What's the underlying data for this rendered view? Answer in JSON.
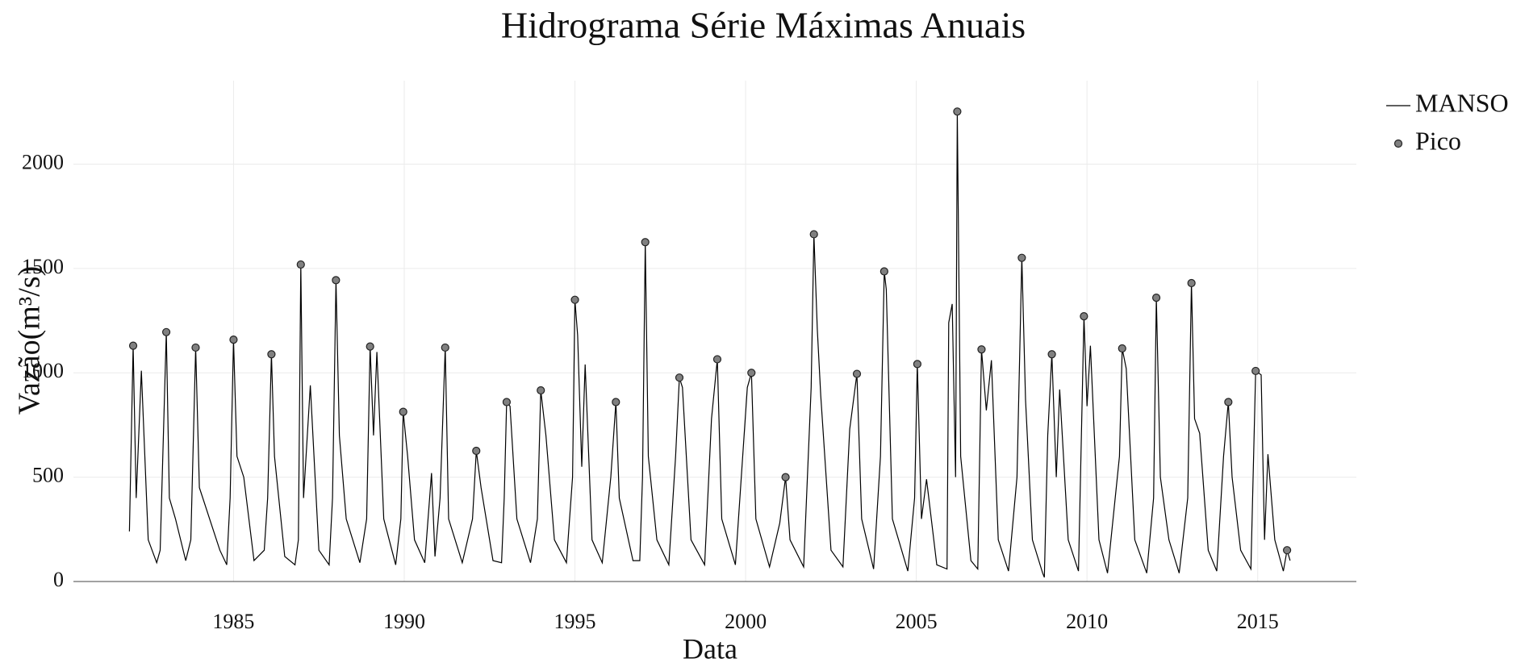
{
  "chart_data": {
    "type": "line",
    "title": "Hidrograma Série Máximas Anuais",
    "x_label": "Data",
    "y_label": "Vazão(m³/s)",
    "xlim": [
      1980.31,
      2017.89
    ],
    "xticks": [
      1985,
      1990,
      1995,
      2000,
      2005,
      2010,
      2015
    ],
    "ylim": [
      0,
      2400
    ],
    "yticks": [
      0,
      500,
      1000,
      1500,
      2000
    ],
    "grid": true,
    "legend": "top-right",
    "series": [
      {
        "name": "MANSO",
        "color": "#000000",
        "mode": "lines",
        "x": [
          1981.95,
          1982.06,
          1982.15,
          1982.3,
          1982.5,
          1982.75,
          1982.85,
          1983.03,
          1983.12,
          1983.3,
          1983.6,
          1983.75,
          1983.89,
          1984.0,
          1984.3,
          1984.6,
          1984.8,
          1984.9,
          1985.0,
          1985.1,
          1985.3,
          1985.6,
          1985.9,
          1986.0,
          1986.11,
          1986.2,
          1986.5,
          1986.8,
          1986.9,
          1986.97,
          1987.05,
          1987.25,
          1987.5,
          1987.8,
          1987.9,
          1988.0,
          1988.1,
          1988.3,
          1988.7,
          1988.9,
          1989.0,
          1989.1,
          1989.2,
          1989.4,
          1989.75,
          1989.9,
          1989.97,
          1990.1,
          1990.3,
          1990.6,
          1990.8,
          1990.9,
          1991.05,
          1991.2,
          1991.3,
          1991.7,
          1992.0,
          1992.11,
          1992.25,
          1992.6,
          1992.85,
          1992.93,
          1993.0,
          1993.1,
          1993.3,
          1993.7,
          1993.9,
          1994.0,
          1994.15,
          1994.4,
          1994.75,
          1994.93,
          1995.0,
          1995.08,
          1995.2,
          1995.3,
          1995.5,
          1995.8,
          1996.05,
          1996.2,
          1996.3,
          1996.7,
          1996.9,
          1996.98,
          1997.06,
          1997.15,
          1997.4,
          1997.75,
          1997.95,
          1998.06,
          1998.15,
          1998.4,
          1998.8,
          1999.0,
          1999.17,
          1999.3,
          1999.7,
          2000.05,
          2000.17,
          2000.3,
          2000.7,
          2001.0,
          2001.17,
          2001.3,
          2001.7,
          2001.92,
          2002.0,
          2002.1,
          2002.2,
          2002.5,
          2002.85,
          2003.05,
          2003.26,
          2003.4,
          2003.75,
          2003.95,
          2004.06,
          2004.12,
          2004.3,
          2004.75,
          2004.95,
          2005.03,
          2005.15,
          2005.3,
          2005.6,
          2005.9,
          2005.95,
          2006.05,
          2006.15,
          2006.2,
          2006.3,
          2006.6,
          2006.8,
          2006.91,
          2007.05,
          2007.2,
          2007.4,
          2007.7,
          2007.95,
          2008.09,
          2008.2,
          2008.4,
          2008.7,
          2008.75,
          2008.85,
          2008.97,
          2009.1,
          2009.2,
          2009.45,
          2009.75,
          2009.91,
          2010.0,
          2010.1,
          2010.35,
          2010.6,
          2010.95,
          2011.03,
          2011.15,
          2011.4,
          2011.75,
          2011.95,
          2012.03,
          2012.15,
          2012.4,
          2012.7,
          2012.95,
          2013.06,
          2013.15,
          2013.3,
          2013.55,
          2013.8,
          2014.0,
          2014.14,
          2014.25,
          2014.5,
          2014.8,
          2014.94,
          2015.1,
          2015.2,
          2015.3,
          2015.5,
          2015.75,
          2015.86,
          2015.95
        ],
        "values": [
          240,
          1130,
          400,
          1010,
          200,
          90,
          150,
          1195,
          400,
          300,
          100,
          200,
          1121,
          450,
          300,
          150,
          80,
          400,
          1159,
          600,
          500,
          100,
          150,
          400,
          1089,
          600,
          120,
          80,
          200,
          1519,
          400,
          940,
          150,
          80,
          400,
          1444,
          700,
          300,
          90,
          300,
          1126,
          700,
          1100,
          300,
          80,
          300,
          813,
          600,
          200,
          90,
          520,
          120,
          400,
          1121,
          300,
          90,
          300,
          626,
          450,
          100,
          90,
          400,
          860,
          840,
          300,
          90,
          300,
          916,
          700,
          200,
          90,
          500,
          1350,
          1180,
          550,
          1040,
          200,
          90,
          500,
          860,
          400,
          100,
          100,
          500,
          1626,
          600,
          200,
          80,
          600,
          977,
          930,
          200,
          80,
          780,
          1065,
          300,
          80,
          930,
          1000,
          300,
          70,
          280,
          500,
          200,
          70,
          930,
          1664,
          1210,
          890,
          150,
          70,
          730,
          995,
          300,
          60,
          600,
          1486,
          1400,
          300,
          50,
          400,
          1042,
          300,
          490,
          80,
          60,
          1240,
          1330,
          500,
          2252,
          600,
          100,
          60,
          1112,
          820,
          1060,
          200,
          50,
          500,
          1551,
          870,
          200,
          40,
          20,
          700,
          1089,
          500,
          920,
          200,
          50,
          1271,
          840,
          1130,
          200,
          40,
          600,
          1117,
          1020,
          200,
          40,
          400,
          1360,
          500,
          200,
          40,
          400,
          1430,
          780,
          710,
          150,
          50,
          600,
          860,
          500,
          150,
          60,
          1009,
          990,
          200,
          610,
          200,
          50,
          150,
          100
        ]
      },
      {
        "name": "Pico",
        "color": "#808080",
        "mode": "markers",
        "x": [
          1982.06,
          1983.03,
          1983.89,
          1985.0,
          1986.11,
          1986.97,
          1988.0,
          1989.0,
          1989.97,
          1991.2,
          1992.11,
          1993.0,
          1994.0,
          1995.0,
          1996.2,
          1997.06,
          1998.06,
          1999.17,
          2000.17,
          2001.17,
          2002.0,
          2003.26,
          2004.06,
          2005.03,
          2006.2,
          2006.91,
          2008.09,
          2008.97,
          2009.91,
          2011.03,
          2012.03,
          2013.06,
          2014.14,
          2014.94,
          2015.86
        ],
        "values": [
          1130,
          1195,
          1121,
          1159,
          1089,
          1519,
          1444,
          1126,
          813,
          1121,
          626,
          860,
          916,
          1350,
          860,
          1626,
          977,
          1065,
          1000,
          500,
          1664,
          995,
          1486,
          1042,
          2252,
          1112,
          1551,
          1089,
          1271,
          1117,
          1360,
          1430,
          860,
          1009,
          150
        ]
      }
    ]
  }
}
